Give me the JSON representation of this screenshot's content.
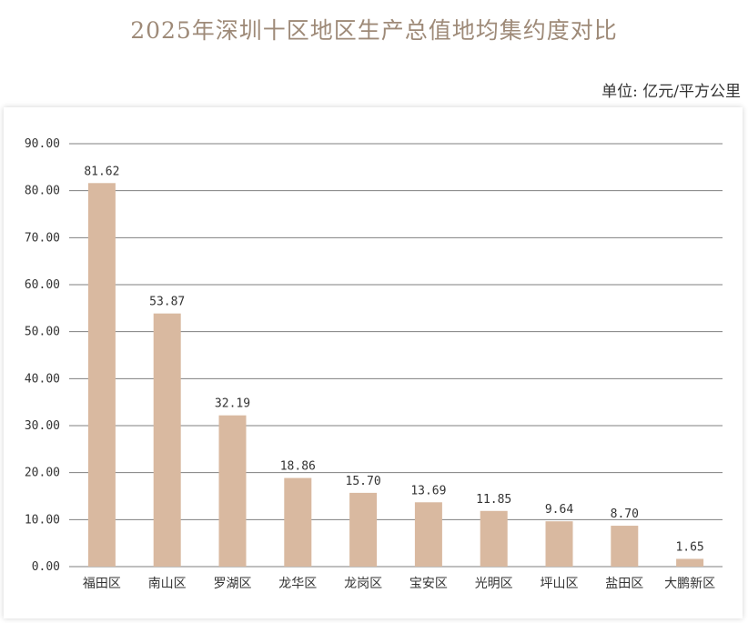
{
  "title": "2025年深圳十区地区生产总值地均集约度对比",
  "unit_label": "单位: 亿元/平方公里",
  "colors": {
    "bar": "#d9b9a0",
    "grid": "#7f7f7f",
    "title": "#9e8a78"
  },
  "chart_data": {
    "type": "bar",
    "title": "2025年深圳十区地区生产总值地均集约度对比",
    "xlabel": "",
    "ylabel": "",
    "ylim": [
      0,
      90
    ],
    "y_ticks": [
      "0.00",
      "10.00",
      "20.00",
      "30.00",
      "40.00",
      "50.00",
      "60.00",
      "70.00",
      "80.00",
      "90.00"
    ],
    "grid": true,
    "categories": [
      "福田区",
      "南山区",
      "罗湖区",
      "龙华区",
      "龙岗区",
      "宝安区",
      "光明区",
      "坪山区",
      "盐田区",
      "大鹏新区"
    ],
    "values": [
      81.62,
      53.87,
      32.19,
      18.86,
      15.7,
      13.69,
      11.85,
      9.64,
      8.7,
      1.65
    ],
    "value_labels": [
      "81.62",
      "53.87",
      "32.19",
      "18.86",
      "15.70",
      "13.69",
      "11.85",
      "9.64",
      "8.70",
      "1.65"
    ]
  }
}
